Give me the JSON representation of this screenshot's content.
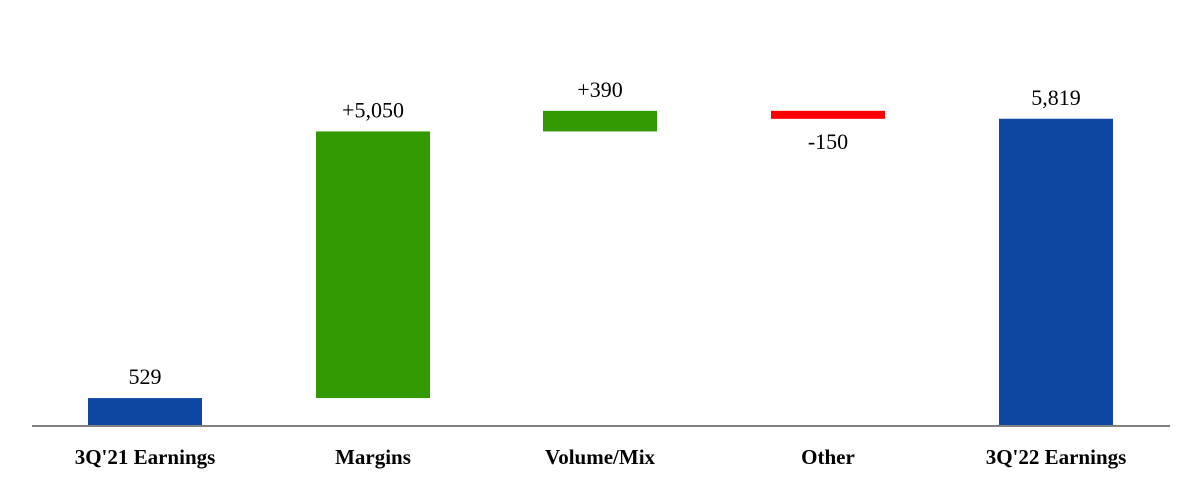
{
  "chart_data": {
    "type": "waterfall",
    "title": "",
    "xlabel": "",
    "ylabel": "",
    "ylim": [
      0,
      6500
    ],
    "grid": false,
    "legend": "none",
    "categories": [
      "3Q'21 Earnings",
      "Margins",
      "Volume/Mix",
      "Other",
      "3Q'22 Earnings"
    ],
    "bars": [
      {
        "category": "3Q'21 Earnings",
        "kind": "total",
        "value": 529,
        "label": "529",
        "color": "#0D47A1"
      },
      {
        "category": "Margins",
        "kind": "increase",
        "value": 5050,
        "label": "+5,050",
        "color": "#339900"
      },
      {
        "category": "Volume/Mix",
        "kind": "increase",
        "value": 390,
        "label": "+390",
        "color": "#339900"
      },
      {
        "category": "Other",
        "kind": "decrease",
        "value": -150,
        "label": "-150",
        "color": "#FF0000"
      },
      {
        "category": "3Q'22 Earnings",
        "kind": "total",
        "value": 5819,
        "label": "5,819",
        "color": "#0D47A1"
      }
    ]
  }
}
